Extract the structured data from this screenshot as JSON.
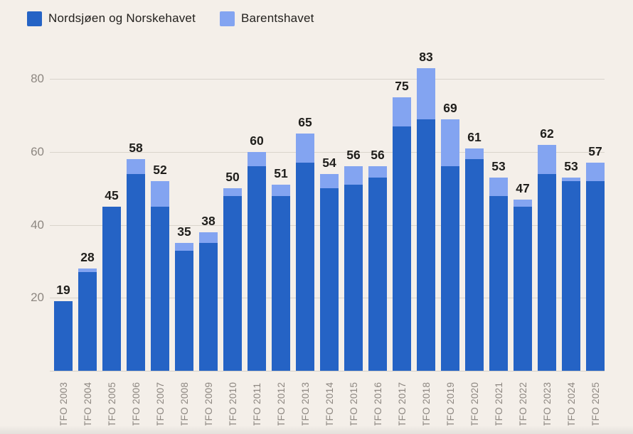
{
  "legend": [
    {
      "label": "Nordsjøen og Norskehavet",
      "color": "#2563c5"
    },
    {
      "label": "Barentshavet",
      "color": "#83a4f1"
    }
  ],
  "colors": {
    "background": "#f4efe9",
    "grid": "#d9d4cc",
    "axis_text": "#8d8781",
    "value_text": "#1f1e1b",
    "dark_blue": "#2563c5",
    "light_blue": "#83a4f1"
  },
  "chart_data": {
    "type": "bar",
    "stacked": true,
    "title": "",
    "xlabel": "",
    "ylabel": "",
    "legend_position": "top-left",
    "grid": true,
    "yticks": [
      20,
      40,
      60,
      80
    ],
    "ylim": [
      0,
      87
    ],
    "categories": [
      "TFO 2003",
      "TFO 2004",
      "TFO 2005",
      "TFO 2006",
      "TFO 2007",
      "TFO 2008",
      "TFO 2009",
      "TFO 2010",
      "TFO 2011",
      "TFO 2012",
      "TFO 2013",
      "TFO 2014",
      "TFO 2015",
      "TFO 2016",
      "TFO 2017",
      "TFO 2018",
      "TFO 2019",
      "TFO 2020",
      "TFO 2021",
      "TFO 2022",
      "TFO 2023",
      "TFO 2024",
      "TFO 2025"
    ],
    "series": [
      {
        "name": "Nordsjøen og Norskehavet",
        "color": "#2563c5",
        "values": [
          19,
          27,
          45,
          54,
          45,
          33,
          35,
          48,
          56,
          48,
          57,
          50,
          51,
          53,
          67,
          69,
          56,
          58,
          48,
          45,
          54,
          52,
          52
        ]
      },
      {
        "name": "Barentshavet",
        "color": "#83a4f1",
        "values": [
          0,
          1,
          0,
          4,
          7,
          2,
          3,
          2,
          4,
          3,
          8,
          4,
          5,
          3,
          8,
          14,
          13,
          3,
          5,
          2,
          8,
          1,
          5
        ]
      }
    ],
    "totals": [
      19,
      28,
      45,
      58,
      52,
      35,
      38,
      50,
      60,
      51,
      65,
      54,
      56,
      56,
      75,
      83,
      69,
      61,
      53,
      47,
      62,
      53,
      57
    ]
  }
}
